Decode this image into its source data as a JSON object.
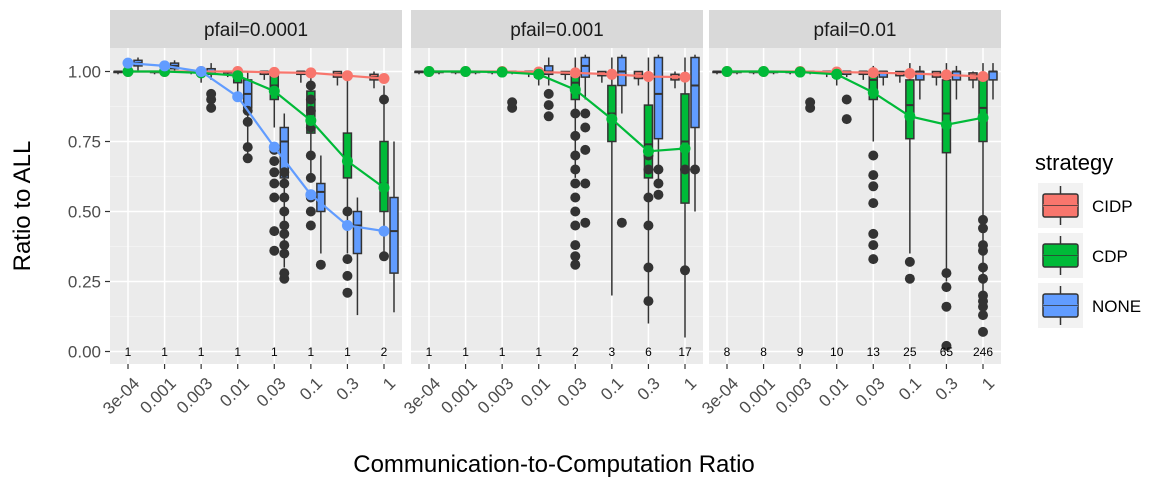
{
  "chart_data": {
    "type": "box+line",
    "facets": [
      "pfail=0.0001",
      "pfail=0.001",
      "pfail=0.01"
    ],
    "categories": [
      "3e-04",
      "0.001",
      "0.003",
      "0.01",
      "0.03",
      "0.1",
      "0.3",
      "1"
    ],
    "xlabel": "Communication-to-Computation Ratio",
    "ylabel": "Ratio to ALL",
    "ylim": [
      0,
      1.05
    ],
    "yticks": [
      0,
      0.25,
      0.5,
      0.75,
      1.0
    ],
    "ytick_labels": [
      "0.00",
      "0.25",
      "0.50",
      "0.75",
      "1.00"
    ],
    "legend": {
      "title": "strategy",
      "position": "right",
      "items": [
        {
          "name": "CIDP",
          "color": "#F8766D"
        },
        {
          "name": "CDP",
          "color": "#00BA38"
        },
        {
          "name": "NONE",
          "color": "#619CFF"
        }
      ]
    },
    "counts": [
      [
        "1",
        "1",
        "1",
        "1",
        "1",
        "1",
        "1",
        "2"
      ],
      [
        "1",
        "1",
        "1",
        "1",
        "2",
        "3",
        "6",
        "17"
      ],
      [
        "8",
        "8",
        "9",
        "10",
        "13",
        "25",
        "65",
        "246"
      ]
    ],
    "series": [
      {
        "name": "CIDP",
        "color": "#F8766D",
        "means": [
          [
            1.0,
            1.0,
            1.0,
            1.0,
            0.997,
            0.995,
            0.985,
            0.975
          ],
          [
            1.0,
            1.0,
            1.0,
            0.998,
            0.995,
            0.99,
            0.982,
            0.98
          ],
          [
            1.0,
            1.0,
            1.0,
            0.998,
            0.996,
            0.993,
            0.988,
            0.982
          ]
        ],
        "boxes": [
          [
            [
              0.99,
              1,
              1,
              1,
              1.0
            ],
            [
              0.99,
              1,
              1,
              1,
              1.0
            ],
            [
              0.99,
              1,
              1,
              1,
              1.0
            ],
            [
              0.98,
              0.995,
              1,
              1,
              1.0
            ],
            [
              0.97,
              0.99,
              1,
              1,
              1.0
            ],
            [
              0.96,
              0.99,
              1,
              1,
              1.0
            ],
            [
              0.95,
              0.98,
              0.99,
              1,
              1.0
            ],
            [
              0.94,
              0.97,
              0.98,
              0.99,
              1.0
            ]
          ],
          [
            [
              0.99,
              1,
              1,
              1,
              1.0
            ],
            [
              0.99,
              1,
              1,
              1,
              1.0
            ],
            [
              0.99,
              1,
              1,
              1,
              1.0
            ],
            [
              0.98,
              0.995,
              1,
              1,
              1.0
            ],
            [
              0.97,
              0.99,
              0.995,
              1,
              1.0
            ],
            [
              0.96,
              0.985,
              0.99,
              1,
              1.0
            ],
            [
              0.95,
              0.975,
              0.985,
              1,
              1.0
            ],
            [
              0.94,
              0.97,
              0.98,
              0.99,
              1.0
            ]
          ],
          [
            [
              0.99,
              1,
              1,
              1,
              1.0
            ],
            [
              0.99,
              1,
              1,
              1,
              1.0
            ],
            [
              0.99,
              1,
              1,
              1,
              1.0
            ],
            [
              0.98,
              0.995,
              1,
              1,
              1.0
            ],
            [
              0.97,
              0.99,
              1,
              1,
              1.0
            ],
            [
              0.96,
              0.985,
              0.995,
              1,
              1.0
            ],
            [
              0.95,
              0.98,
              0.99,
              1,
              1.0
            ],
            [
              0.94,
              0.97,
              0.985,
              0.995,
              1.0
            ]
          ]
        ],
        "outliers": [
          [
            [],
            [],
            [],
            [],
            [],
            [],
            [],
            []
          ],
          [
            [],
            [],
            [],
            [],
            [],
            [],
            [],
            []
          ],
          [
            [],
            [],
            [],
            [],
            [],
            [],
            [],
            []
          ]
        ]
      },
      {
        "name": "CDP",
        "color": "#00BA38",
        "means": [
          [
            1.0,
            1.0,
            0.995,
            0.985,
            0.93,
            0.825,
            0.68,
            0.585
          ],
          [
            1.0,
            1.0,
            0.998,
            0.99,
            0.935,
            0.83,
            0.715,
            0.725
          ],
          [
            1.0,
            1.0,
            0.998,
            0.99,
            0.925,
            0.84,
            0.81,
            0.835
          ]
        ],
        "boxes": [
          [
            [
              0.99,
              1,
              1,
              1,
              1.0
            ],
            [
              0.99,
              1,
              1,
              1,
              1.0
            ],
            [
              0.96,
              0.99,
              1,
              1,
              1.0
            ],
            [
              0.92,
              0.96,
              0.99,
              1,
              1.0
            ],
            [
              0.8,
              0.9,
              0.95,
              0.99,
              1.0
            ],
            [
              0.62,
              0.78,
              0.87,
              0.93,
              1.0
            ],
            [
              0.35,
              0.62,
              0.68,
              0.78,
              1.0
            ],
            [
              0.35,
              0.5,
              0.6,
              0.75,
              0.95
            ]
          ],
          [
            [
              0.99,
              1,
              1,
              1,
              1.0
            ],
            [
              0.99,
              1,
              1,
              1,
              1.0
            ],
            [
              0.98,
              0.995,
              1,
              1,
              1.0
            ],
            [
              0.95,
              0.98,
              0.995,
              1,
              1.0
            ],
            [
              0.62,
              0.9,
              0.96,
              1.0,
              1.05
            ],
            [
              0.2,
              0.75,
              0.85,
              0.95,
              1.05
            ],
            [
              0.1,
              0.62,
              0.74,
              0.88,
              1.05
            ],
            [
              0.05,
              0.53,
              0.75,
              0.92,
              1.05
            ]
          ],
          [
            [
              0.99,
              1,
              1,
              1,
              1.0
            ],
            [
              0.99,
              1,
              1,
              1,
              1.0
            ],
            [
              0.98,
              0.995,
              1,
              1,
              1.0
            ],
            [
              0.95,
              0.98,
              1,
              1,
              1.0
            ],
            [
              0.75,
              0.9,
              0.97,
              1.0,
              1.02
            ],
            [
              0.35,
              0.76,
              0.88,
              0.97,
              1.03
            ],
            [
              0.25,
              0.71,
              0.85,
              0.97,
              1.03
            ],
            [
              0.15,
              0.75,
              0.87,
              0.97,
              1.03
            ]
          ]
        ],
        "outliers": [
          [
            [],
            [],
            [],
            [],
            [
              0.36,
              0.43,
              0.55,
              0.6,
              0.64,
              0.68,
              0.72
            ],
            [
              0.45,
              0.5,
              0.55,
              0.62,
              0.7,
              0.8,
              0.86,
              0.9,
              0.95
            ],
            [
              0.21,
              0.27,
              0.33,
              0.45,
              0.5
            ],
            [
              0.34,
              0.9
            ]
          ],
          [
            [],
            [],
            [],
            [],
            [
              0.31,
              0.34,
              0.38,
              0.45,
              0.5,
              0.55,
              0.6,
              0.65,
              0.7,
              0.77,
              0.85
            ],
            [],
            [
              0.18,
              0.3,
              0.45,
              0.55,
              0.65,
              0.7
            ],
            [
              0.29,
              0.65
            ]
          ],
          [
            [],
            [],
            [],
            [],
            [
              0.33,
              0.38,
              0.42,
              0.53,
              0.59,
              0.63,
              0.7
            ],
            [
              0.26,
              0.32
            ],
            [
              0.02,
              0.16,
              0.23,
              0.28
            ],
            [
              0.07,
              0.13,
              0.16,
              0.18,
              0.2,
              0.26,
              0.3,
              0.36,
              0.38,
              0.44,
              0.47
            ]
          ]
        ]
      },
      {
        "name": "NONE",
        "color": "#619CFF",
        "means": [
          [
            1.03,
            1.02,
            1.0,
            0.91,
            0.73,
            0.56,
            0.45,
            0.43
          ],
          [
            null,
            null,
            null,
            null,
            null,
            null,
            null,
            null
          ],
          [
            null,
            null,
            null,
            null,
            null,
            null,
            null,
            null
          ]
        ],
        "boxes": [
          [
            [
              1.0,
              1.02,
              1.03,
              1.04,
              1.05
            ],
            [
              1.0,
              1.01,
              1.02,
              1.03,
              1.04
            ],
            [
              0.97,
              0.99,
              1.0,
              1.01,
              1.03
            ],
            [
              0.7,
              0.87,
              0.92,
              0.97,
              1.0
            ],
            [
              0.3,
              0.62,
              0.75,
              0.8,
              0.85
            ],
            [
              0.35,
              0.5,
              0.57,
              0.6,
              0.7
            ],
            [
              0.13,
              0.35,
              0.45,
              0.5,
              0.55
            ],
            [
              0.14,
              0.28,
              0.43,
              0.55,
              0.75
            ]
          ],
          [
            [
              0.99,
              1,
              1,
              1,
              1.0
            ],
            [
              0.99,
              1,
              1,
              1,
              1.0
            ],
            [
              0.99,
              1,
              1,
              1,
              1.0
            ],
            [
              0.95,
              0.99,
              1,
              1.02,
              1.05
            ],
            [
              0.9,
              0.98,
              1.02,
              1.05,
              1.06
            ],
            [
              0.85,
              0.95,
              1.0,
              1.05,
              1.06
            ],
            [
              0.6,
              0.76,
              0.92,
              1.05,
              1.06
            ],
            [
              0.5,
              0.8,
              0.95,
              1.05,
              1.06
            ]
          ],
          [
            [
              0.99,
              1,
              1,
              1,
              1.0
            ],
            [
              0.99,
              1,
              1,
              1,
              1.0
            ],
            [
              0.99,
              1,
              1,
              1,
              1.0
            ],
            [
              0.98,
              0.99,
              1,
              1,
              1.0
            ],
            [
              0.95,
              0.98,
              1,
              1,
              1.0
            ],
            [
              0.9,
              0.97,
              1,
              1,
              1.02
            ],
            [
              0.9,
              0.97,
              1,
              1,
              1.02
            ],
            [
              0.9,
              0.97,
              1,
              1,
              1.03
            ]
          ]
        ],
        "outliers": [
          [
            [],
            [],
            [
              0.87,
              0.9,
              0.92
            ],
            [
              0.69,
              0.73,
              0.82,
              0.86
            ],
            [
              0.26,
              0.28,
              0.35,
              0.38,
              0.42,
              0.45,
              0.5,
              0.55,
              0.6,
              0.64
            ],
            [
              0.31
            ],
            [],
            []
          ],
          [
            [],
            [],
            [
              0.87,
              0.89
            ],
            [
              0.84,
              0.88,
              0.92
            ],
            [
              0.46,
              0.6,
              0.72,
              0.8,
              0.85
            ],
            [
              0.46
            ],
            [
              0.56,
              0.6,
              0.65
            ],
            [
              0.65
            ]
          ],
          [
            [],
            [],
            [
              0.87,
              0.89
            ],
            [
              0.83,
              0.9
            ],
            [],
            [],
            [],
            []
          ]
        ]
      }
    ]
  }
}
